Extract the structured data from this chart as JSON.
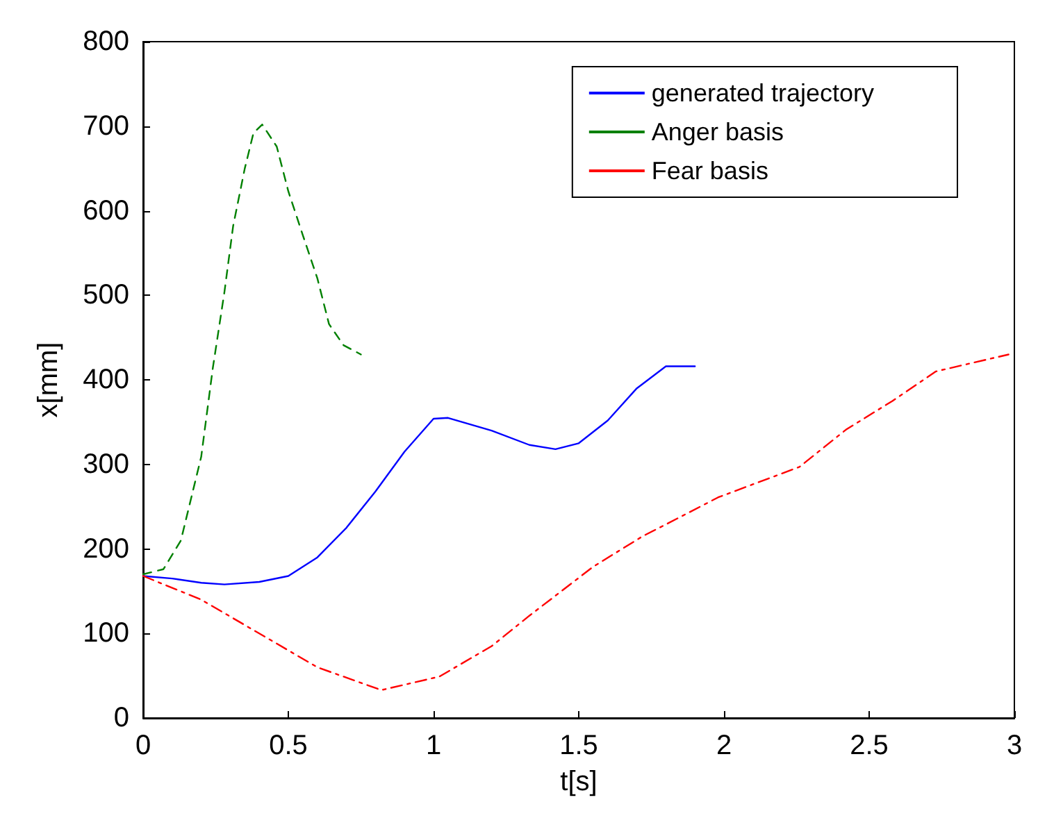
{
  "chart_data": {
    "type": "line",
    "xlabel": "t[s]",
    "ylabel": "x[mm]",
    "xlim": [
      0,
      3
    ],
    "xticks": [
      0,
      0.5,
      1,
      1.5,
      2,
      2.5,
      3
    ],
    "ylim": [
      0,
      800
    ],
    "yticks": [
      0,
      100,
      200,
      300,
      400,
      500,
      600,
      700,
      800
    ],
    "grid": false,
    "legend": "top right",
    "marker": "none",
    "series": [
      {
        "name": "generated trajectory",
        "color": "#0000ff",
        "line_style": "solid",
        "x": [
          0,
          0.1,
          0.2,
          0.28,
          0.4,
          0.5,
          0.6,
          0.7,
          0.8,
          0.9,
          1.0,
          1.05,
          1.2,
          1.33,
          1.42,
          1.5,
          1.6,
          1.7,
          1.8,
          1.9
        ],
        "values": [
          168,
          165,
          160,
          158,
          161,
          168,
          190,
          225,
          268,
          315,
          354,
          355,
          340,
          323,
          318,
          325,
          352,
          390,
          416,
          416
        ]
      },
      {
        "name": "Anger basis",
        "color": "#008000",
        "line_style": "dashed",
        "x": [
          0,
          0.07,
          0.13,
          0.2,
          0.24,
          0.28,
          0.31,
          0.35,
          0.38,
          0.41,
          0.46,
          0.5,
          0.55,
          0.6,
          0.64,
          0.69,
          0.75
        ],
        "values": [
          170,
          176,
          210,
          309,
          414,
          504,
          582,
          650,
          692,
          702,
          676,
          623,
          571,
          520,
          466,
          441,
          430
        ]
      },
      {
        "name": "Fear basis",
        "color": "#ff0000",
        "line_style": "dotted",
        "x": [
          0,
          0.2,
          0.4,
          0.6,
          0.82,
          1.02,
          1.2,
          1.33,
          1.55,
          1.72,
          1.8,
          1.98,
          2.26,
          2.42,
          2.58,
          2.73,
          2.98
        ],
        "values": [
          168,
          140,
          100,
          60,
          33,
          49,
          85,
          121,
          179,
          215,
          229,
          261,
          297,
          341,
          375,
          410,
          430
        ]
      }
    ]
  }
}
